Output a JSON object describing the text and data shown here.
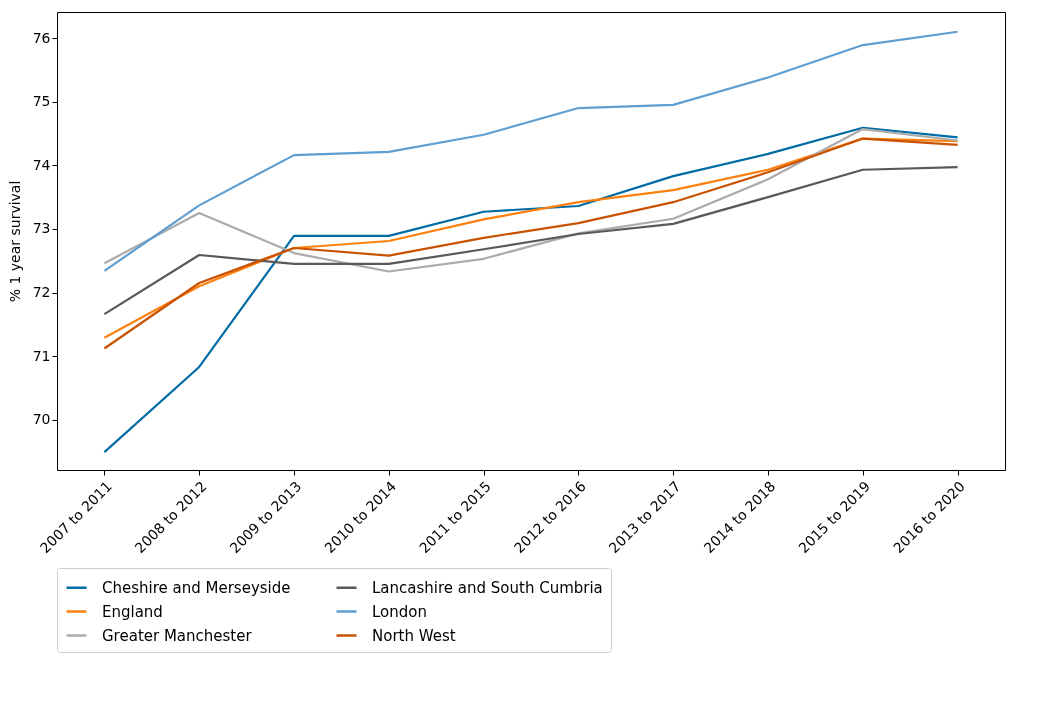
{
  "chart_data": {
    "type": "line",
    "ylabel": "% 1 year survival",
    "categories": [
      "2007 to 2011",
      "2008 to 2012",
      "2009 to 2013",
      "2010 to 2014",
      "2011 to 2015",
      "2012 to 2016",
      "2013 to 2017",
      "2014 to 2018",
      "2015 to 2019",
      "2016 to 2020"
    ],
    "series": [
      {
        "name": "Cheshire and Merseyside",
        "color": "#006ba4",
        "values": [
          69.49,
          70.83,
          72.89,
          72.89,
          73.27,
          73.36,
          73.83,
          74.18,
          74.59,
          74.44
        ]
      },
      {
        "name": "England",
        "color": "#ff800e",
        "values": [
          71.29,
          72.1,
          72.7,
          72.81,
          73.15,
          73.42,
          73.61,
          73.93,
          74.42,
          74.38
        ]
      },
      {
        "name": "Greater Manchester",
        "color": "#ababab",
        "values": [
          72.46,
          73.25,
          72.62,
          72.33,
          72.53,
          72.93,
          73.16,
          73.78,
          74.57,
          74.39
        ]
      },
      {
        "name": "Lancashire and South Cumbria",
        "color": "#595959",
        "values": [
          71.66,
          72.59,
          72.45,
          72.45,
          72.68,
          72.92,
          73.08,
          73.5,
          73.93,
          73.97
        ]
      },
      {
        "name": "London",
        "color": "#5f9ed1",
        "values": [
          72.34,
          73.37,
          74.16,
          74.21,
          74.48,
          74.9,
          74.95,
          75.38,
          75.89,
          76.1
        ]
      },
      {
        "name": "North West",
        "color": "#c85200",
        "values": [
          71.12,
          72.15,
          72.7,
          72.58,
          72.86,
          73.09,
          73.42,
          73.89,
          74.42,
          74.32
        ]
      }
    ],
    "ylim": [
      69.21,
      76.41
    ],
    "yticks": [
      70,
      71,
      72,
      73,
      74,
      75,
      76
    ],
    "grid": false,
    "legend": "bottom",
    "line_style": "solid",
    "marker": "none"
  }
}
